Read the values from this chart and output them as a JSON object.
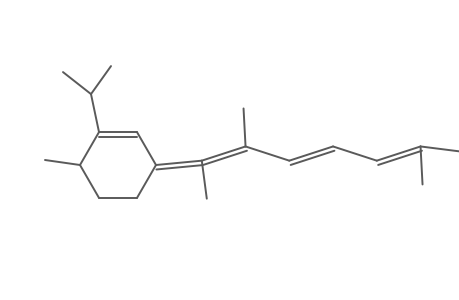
{
  "bg_color": "#ffffff",
  "line_color": "#5a5a5a",
  "text_color": "#000000",
  "line_width": 1.4,
  "figsize": [
    4.6,
    3.0
  ],
  "dpi": 100
}
